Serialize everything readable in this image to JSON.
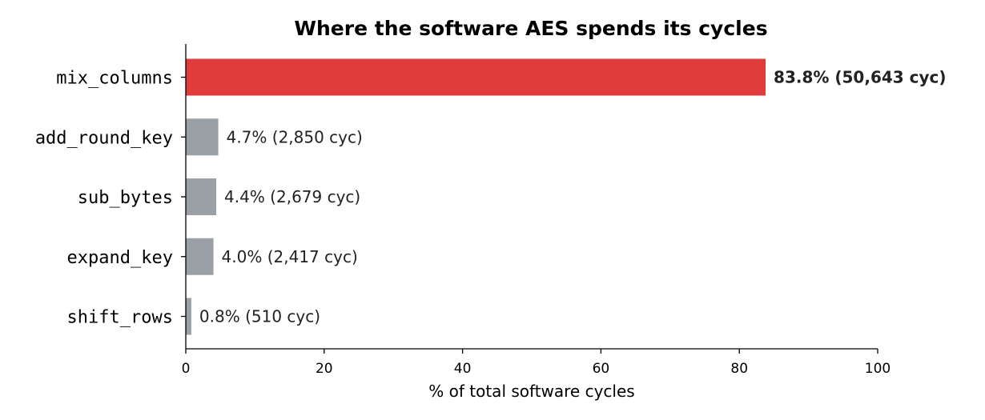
{
  "chart_data": {
    "type": "bar",
    "orientation": "horizontal",
    "title": "Where the software AES spends its cycles",
    "xlabel": "% of total software cycles",
    "ylabel": "",
    "xlim": [
      0,
      100
    ],
    "xticks": [
      0,
      20,
      40,
      60,
      80,
      100
    ],
    "grid": false,
    "categories": [
      "mix_columns",
      "add_round_key",
      "sub_bytes",
      "expand_key",
      "shift_rows"
    ],
    "values": [
      83.8,
      4.7,
      4.4,
      4.0,
      0.8
    ],
    "data_labels": [
      "83.8%  (50,643 cyc)",
      "4.7%  (2,850 cyc)",
      "4.4%  (2,679 cyc)",
      "4.0%  (2,417 cyc)",
      "0.8%  (510 cyc)"
    ],
    "highlight_index": 0,
    "colors": {
      "highlight": "#e03c3c",
      "default": "#9ba0a6"
    }
  }
}
